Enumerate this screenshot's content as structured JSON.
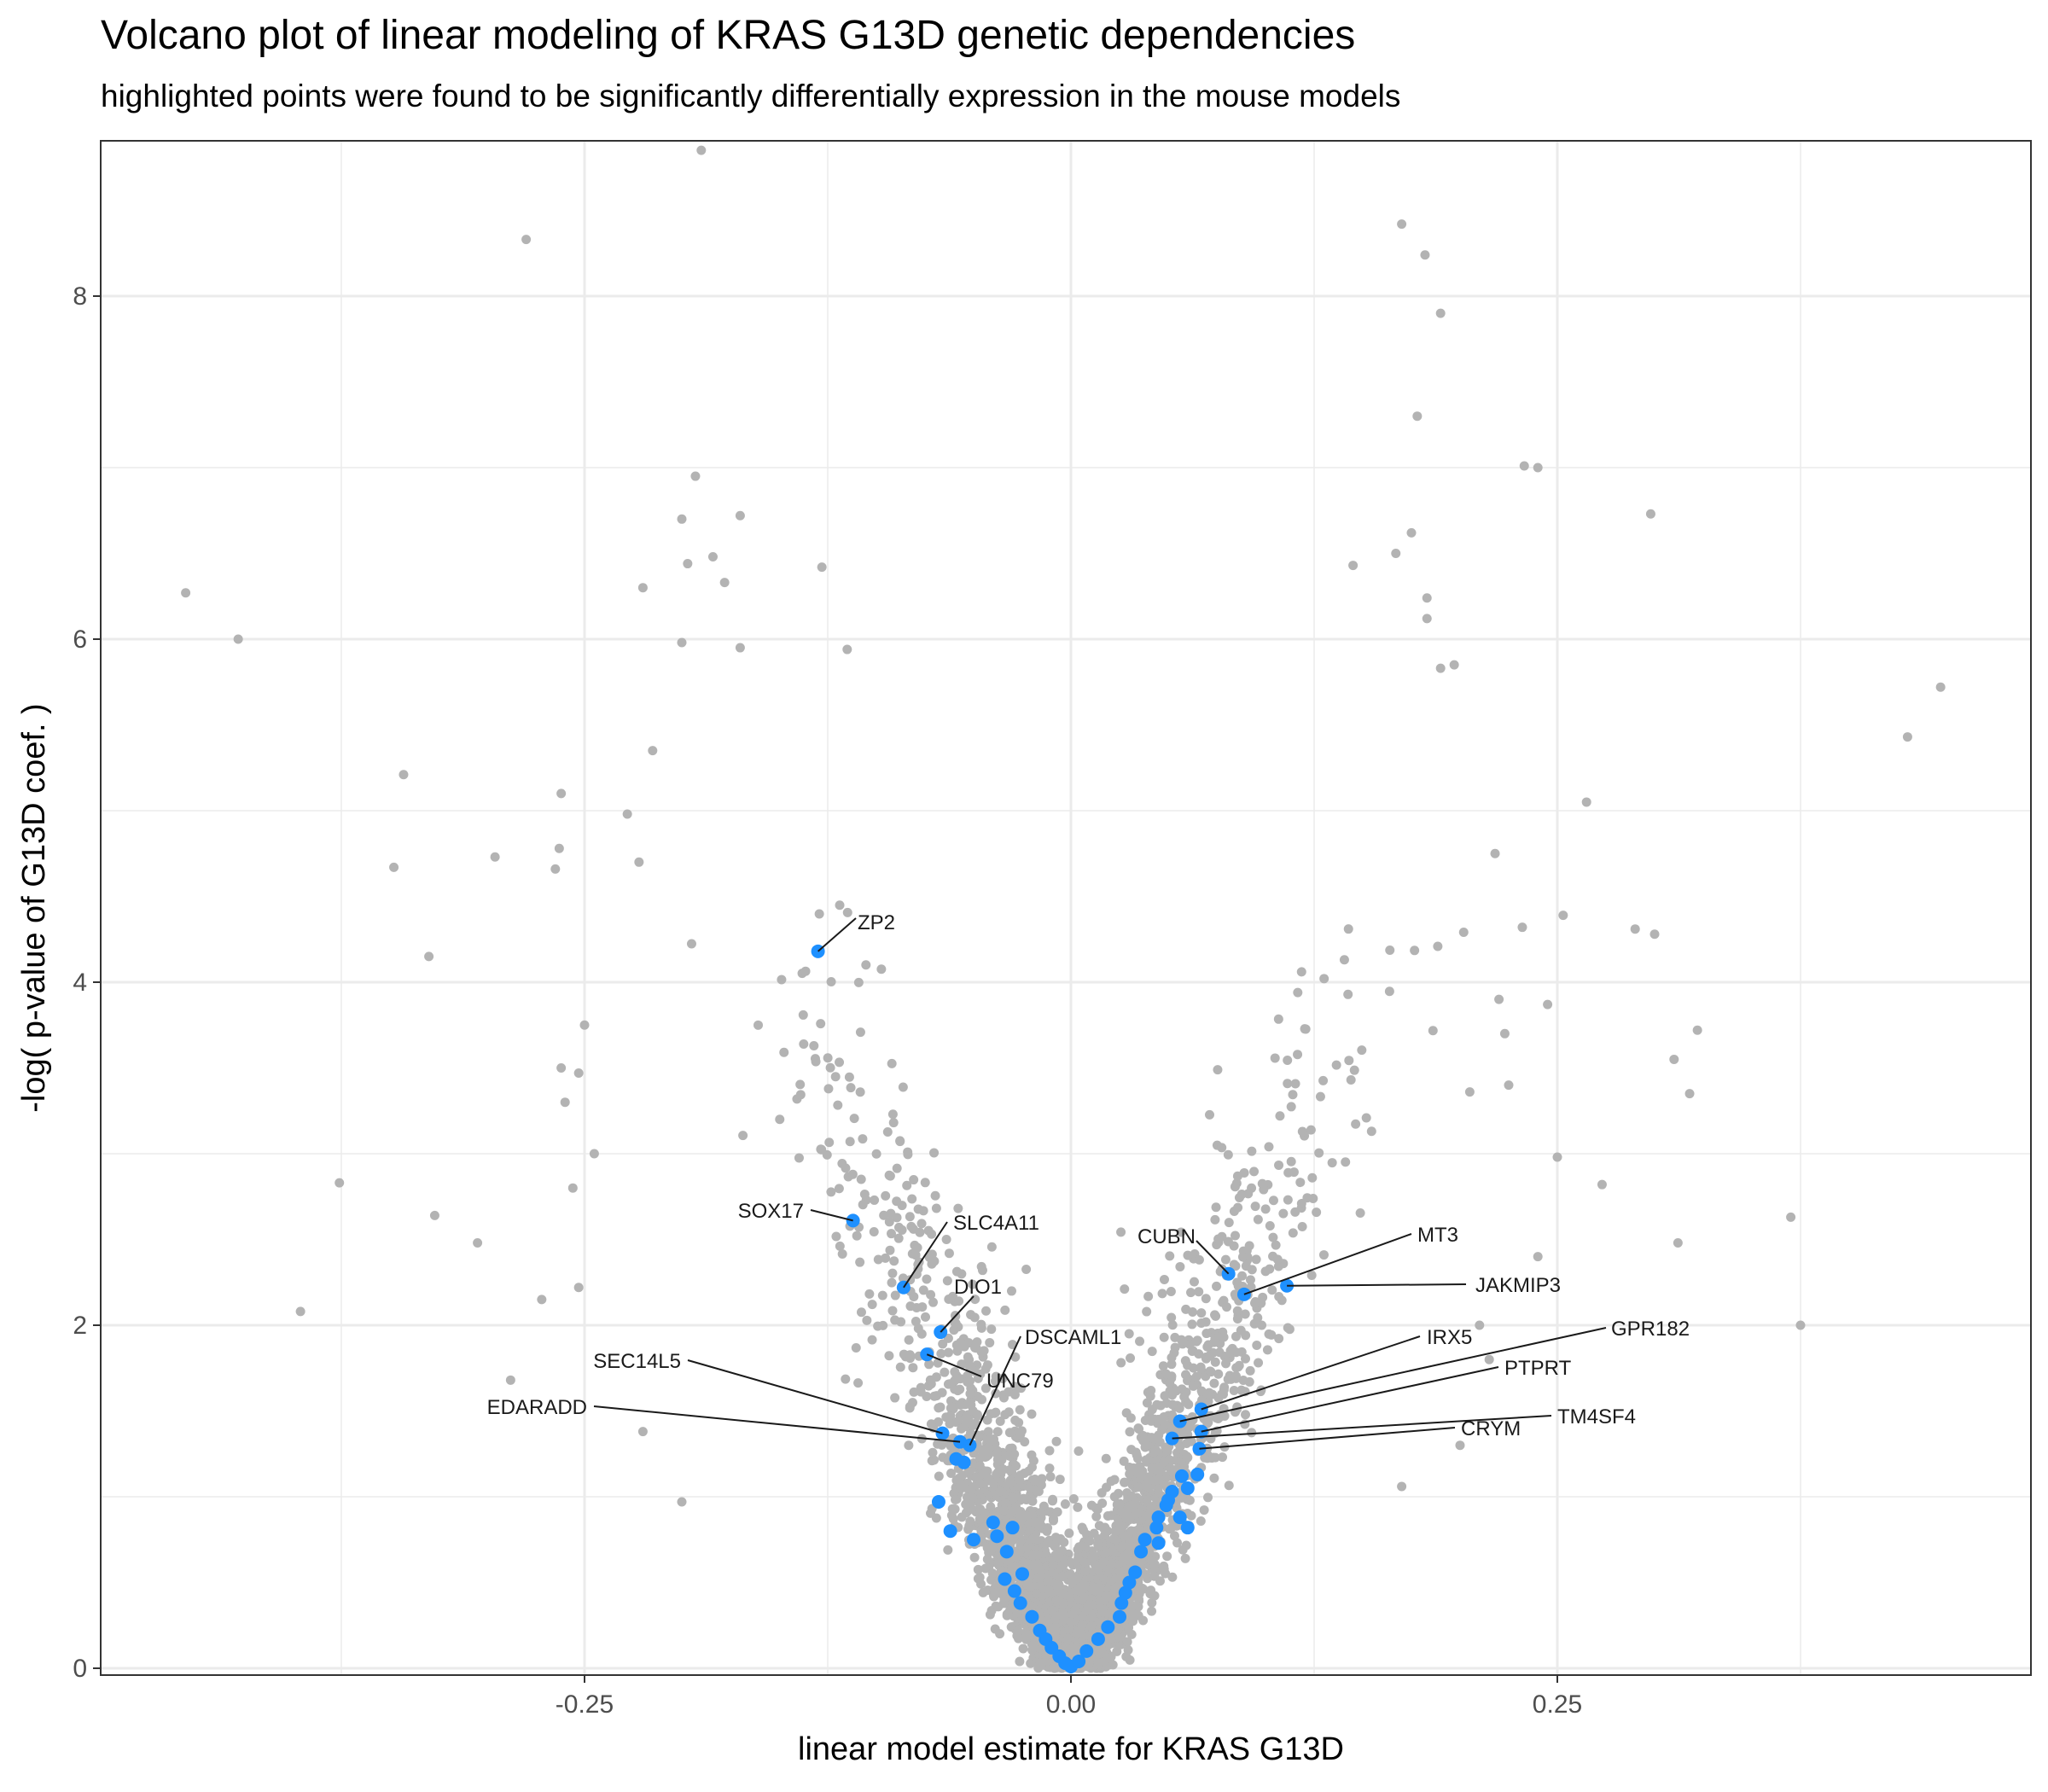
{
  "chart_data": {
    "type": "scatter",
    "title": "Volcano plot of linear modeling of KRAS G13D genetic dependencies",
    "subtitle": "highlighted points were found to be significantly differentially expression in the mouse models",
    "xlabel": "linear model estimate for KRAS G13D",
    "ylabel": "-log( p-value of G13D coef. )",
    "xlim": [
      -0.5,
      0.5
    ],
    "ylim": [
      0,
      8.9
    ],
    "x_ticks": [
      -0.25,
      0.0,
      0.25
    ],
    "x_tick_labels": [
      "-0.25",
      "0.00",
      "0.25"
    ],
    "y_ticks": [
      0,
      2,
      4,
      6,
      8
    ],
    "y_tick_labels": [
      "0",
      "2",
      "4",
      "6",
      "8"
    ],
    "grid": true,
    "legend": "none",
    "colors": {
      "background_points": "#b3b3b3",
      "highlight_points": "#1e90ff",
      "grid": "#ebebeb",
      "panel_border": "#333333"
    },
    "outlier_points": [
      [
        -0.19,
        8.85
      ],
      [
        -0.28,
        8.33
      ],
      [
        -0.455,
        6.27
      ],
      [
        -0.428,
        6.0
      ],
      [
        -0.2,
        6.7
      ],
      [
        -0.197,
        6.44
      ],
      [
        -0.184,
        6.48
      ],
      [
        -0.17,
        6.72
      ],
      [
        -0.193,
        6.95
      ],
      [
        -0.128,
        6.42
      ],
      [
        -0.22,
        6.3
      ],
      [
        -0.2,
        5.98
      ],
      [
        -0.178,
        6.33
      ],
      [
        -0.17,
        5.95
      ],
      [
        -0.115,
        5.94
      ],
      [
        -0.343,
        5.21
      ],
      [
        -0.262,
        5.1
      ],
      [
        -0.348,
        4.67
      ],
      [
        -0.296,
        4.73
      ],
      [
        -0.263,
        4.78
      ],
      [
        -0.265,
        4.66
      ],
      [
        -0.33,
        4.15
      ],
      [
        -0.376,
        2.83
      ],
      [
        -0.327,
        2.64
      ],
      [
        -0.305,
        2.48
      ],
      [
        -0.396,
        2.08
      ],
      [
        -0.272,
        2.15
      ],
      [
        -0.288,
        1.68
      ],
      [
        -0.253,
        2.22
      ],
      [
        -0.25,
        3.75
      ],
      [
        -0.262,
        3.5
      ],
      [
        -0.253,
        3.47
      ],
      [
        -0.256,
        2.8
      ],
      [
        -0.22,
        1.38
      ],
      [
        -0.2,
        0.97
      ],
      [
        -0.26,
        3.3
      ],
      [
        -0.245,
        3.0
      ],
      [
        -0.222,
        4.7
      ],
      [
        -0.228,
        4.98
      ],
      [
        -0.215,
        5.35
      ],
      [
        0.17,
        8.42
      ],
      [
        0.182,
        8.24
      ],
      [
        0.19,
        7.9
      ],
      [
        0.178,
        7.3
      ],
      [
        0.24,
        7.0
      ],
      [
        0.233,
        7.01
      ],
      [
        0.298,
        6.73
      ],
      [
        0.175,
        6.62
      ],
      [
        0.167,
        6.5
      ],
      [
        0.145,
        6.43
      ],
      [
        0.183,
        6.24
      ],
      [
        0.183,
        6.12
      ],
      [
        0.19,
        5.83
      ],
      [
        0.197,
        5.85
      ],
      [
        0.447,
        5.72
      ],
      [
        0.43,
        5.43
      ],
      [
        0.265,
        5.05
      ],
      [
        0.253,
        4.39
      ],
      [
        0.29,
        4.31
      ],
      [
        0.218,
        4.75
      ],
      [
        0.322,
        3.72
      ],
      [
        0.31,
        3.55
      ],
      [
        0.318,
        3.35
      ],
      [
        0.3,
        4.28
      ],
      [
        0.245,
        3.87
      ],
      [
        0.273,
        2.82
      ],
      [
        0.25,
        2.98
      ],
      [
        0.312,
        2.48
      ],
      [
        0.37,
        2.63
      ],
      [
        0.375,
        2.0
      ],
      [
        0.22,
        3.9
      ],
      [
        0.223,
        3.7
      ],
      [
        0.225,
        3.4
      ],
      [
        0.232,
        4.32
      ],
      [
        0.24,
        2.4
      ],
      [
        0.2,
        1.3
      ],
      [
        0.17,
        1.06
      ],
      [
        0.21,
        2.0
      ],
      [
        0.215,
        1.8
      ],
      [
        0.205,
        3.36
      ]
    ],
    "highlighted_points": [
      {
        "gene": "ZP2",
        "x": -0.13,
        "y": 4.18
      },
      {
        "gene": "SOX17",
        "x": -0.112,
        "y": 2.61
      },
      {
        "gene": "SLC4A11",
        "x": -0.086,
        "y": 2.22
      },
      {
        "gene": "DIO1",
        "x": -0.067,
        "y": 1.96
      },
      {
        "gene": "UNC79",
        "x": -0.074,
        "y": 1.83
      },
      {
        "gene": "DSCAML1",
        "x": -0.052,
        "y": 1.3
      },
      {
        "gene": "SEC14L5",
        "x": -0.066,
        "y": 1.37
      },
      {
        "gene": "EDARADD",
        "x": -0.057,
        "y": 1.32
      },
      {
        "gene": "CUBN",
        "x": 0.081,
        "y": 2.3
      },
      {
        "gene": "MT3",
        "x": 0.089,
        "y": 2.18
      },
      {
        "gene": "JAKMIP3",
        "x": 0.111,
        "y": 2.23
      },
      {
        "gene": "IRX5",
        "x": 0.067,
        "y": 1.51
      },
      {
        "gene": "GPR182",
        "x": 0.056,
        "y": 1.44
      },
      {
        "gene": "PTPRT",
        "x": 0.067,
        "y": 1.38
      },
      {
        "gene": "TM4SF4",
        "x": 0.052,
        "y": 1.34
      },
      {
        "gene": "CRYM",
        "x": 0.066,
        "y": 1.28
      }
    ],
    "highlighted_unlabeled": [
      [
        -0.055,
        1.2
      ],
      [
        -0.059,
        1.22
      ],
      [
        -0.068,
        0.97
      ],
      [
        -0.062,
        0.8
      ],
      [
        -0.05,
        0.75
      ],
      [
        -0.04,
        0.85
      ],
      [
        -0.038,
        0.77
      ],
      [
        -0.03,
        0.82
      ],
      [
        -0.033,
        0.68
      ],
      [
        -0.025,
        0.55
      ],
      [
        -0.034,
        0.52
      ],
      [
        -0.029,
        0.45
      ],
      [
        -0.026,
        0.38
      ],
      [
        -0.02,
        0.3
      ],
      [
        -0.016,
        0.22
      ],
      [
        -0.013,
        0.17
      ],
      [
        -0.01,
        0.12
      ],
      [
        -0.006,
        0.07
      ],
      [
        -0.003,
        0.03
      ],
      [
        0.0,
        0.01
      ],
      [
        0.004,
        0.04
      ],
      [
        0.008,
        0.1
      ],
      [
        0.014,
        0.17
      ],
      [
        0.019,
        0.24
      ],
      [
        0.025,
        0.3
      ],
      [
        0.026,
        0.38
      ],
      [
        0.028,
        0.44
      ],
      [
        0.03,
        0.5
      ],
      [
        0.033,
        0.56
      ],
      [
        0.036,
        0.68
      ],
      [
        0.038,
        0.75
      ],
      [
        0.044,
        0.82
      ],
      [
        0.045,
        0.88
      ],
      [
        0.049,
        0.95
      ],
      [
        0.05,
        0.98
      ],
      [
        0.052,
        1.03
      ],
      [
        0.057,
        1.12
      ],
      [
        0.06,
        1.05
      ],
      [
        0.065,
        1.13
      ],
      [
        0.056,
        0.88
      ],
      [
        0.045,
        0.73
      ],
      [
        0.06,
        0.82
      ]
    ]
  }
}
